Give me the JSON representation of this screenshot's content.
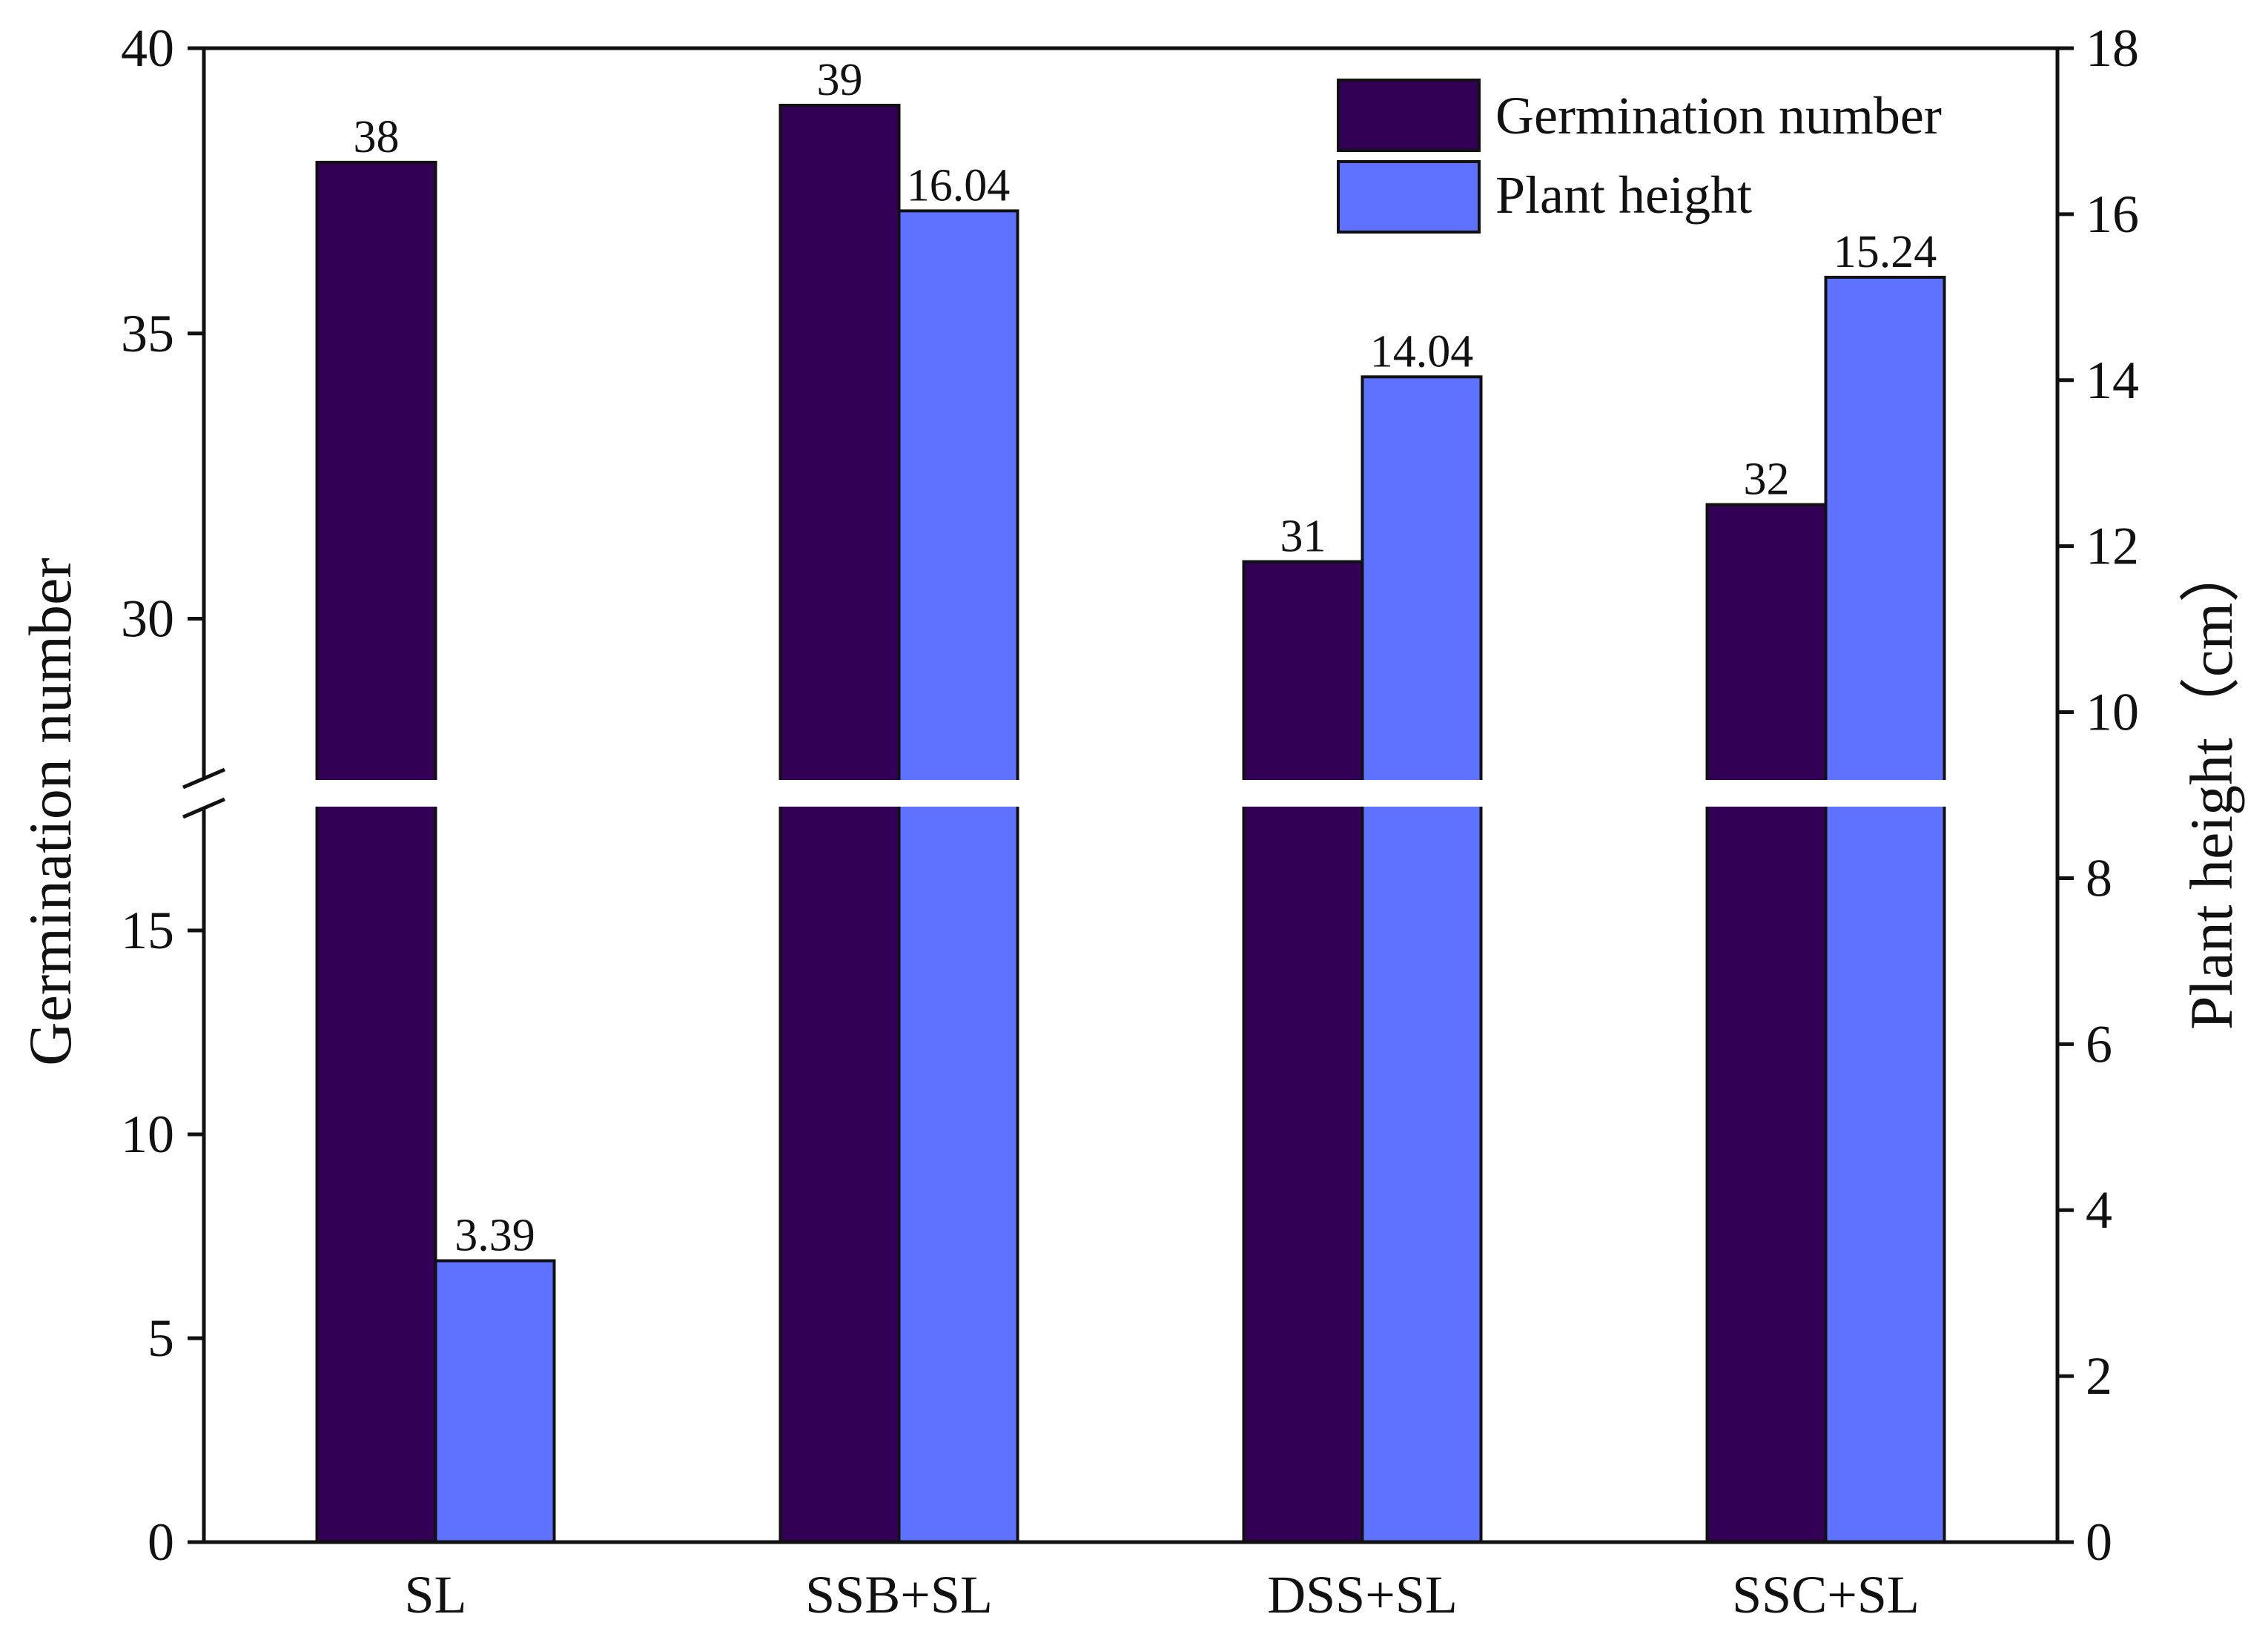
{
  "chart_data": {
    "type": "bar",
    "categories": [
      "SL",
      "SSB+SL",
      "DSS+SL",
      "SSC+SL"
    ],
    "series": [
      {
        "name": "Germination number",
        "axis": "left",
        "color": "#320055",
        "values": [
          38,
          39,
          31,
          32
        ],
        "labels": [
          "38",
          "39",
          "31",
          "32"
        ]
      },
      {
        "name": "Plant height",
        "axis": "right",
        "color": "#5e72ff",
        "values": [
          3.39,
          16.04,
          14.04,
          15.24
        ],
        "labels": [
          "3.39",
          "16.04",
          "14.04",
          "15.24"
        ]
      }
    ],
    "left_axis": {
      "label": "Germination number",
      "break": {
        "lower_range": [
          0,
          18
        ],
        "upper_range": [
          27.2,
          40
        ]
      },
      "ticks_lower": [
        0,
        5,
        10,
        15
      ],
      "ticks_lower_labels": [
        "0",
        "5",
        "10",
        "15"
      ],
      "ticks_upper": [
        30,
        35,
        40
      ],
      "ticks_upper_labels": [
        "30",
        "35",
        "40"
      ]
    },
    "right_axis": {
      "label": "Plant height（cm）",
      "ylim": [
        0,
        18
      ],
      "ticks": [
        0,
        2,
        4,
        6,
        8,
        10,
        12,
        14,
        16,
        18
      ],
      "tick_labels": [
        "0",
        "2",
        "4",
        "6",
        "8",
        "10",
        "12",
        "14",
        "16",
        "18"
      ]
    },
    "legend": {
      "position": "top-right",
      "entries": [
        "Germination number",
        "Plant height"
      ]
    },
    "grid": false
  }
}
